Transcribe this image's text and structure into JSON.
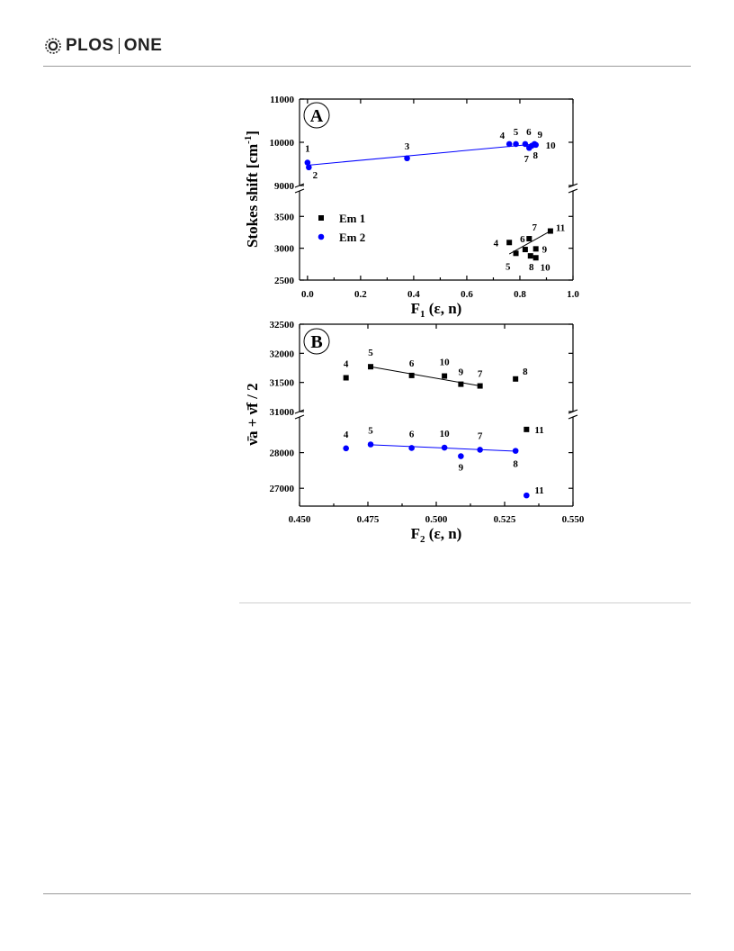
{
  "header": {
    "logo_left": "PLOS",
    "logo_right": "ONE",
    "logo_icon": "plos-logo-icon"
  },
  "chart_data": [
    {
      "type": "scatter",
      "panel_label": "A",
      "xlabel": "F",
      "xlabel_sub": "1",
      "xlabel_rest": " (ε, n)",
      "ylabel": "Stokes shift [cm",
      "ylabel_sup": "-1",
      "ylabel_end": "]",
      "xlim": [
        -0.03,
        1.0
      ],
      "x_ticks": [
        "0.0",
        "0.2",
        "0.4",
        "0.6",
        "0.8",
        "1.0"
      ],
      "y_broken": true,
      "y_upper_range": [
        9000,
        11000
      ],
      "y_upper_ticks": [
        "9000",
        "10000",
        "11000"
      ],
      "y_lower_range": [
        2500,
        3900
      ],
      "y_lower_ticks": [
        "2500",
        "3000",
        "3500"
      ],
      "legend": [
        {
          "label": "Em 1",
          "marker": "square",
          "color": "#000000"
        },
        {
          "label": "Em 2",
          "marker": "circle",
          "color": "#0000ff"
        }
      ],
      "legend_position": "middle-left",
      "series": [
        {
          "name": "Em 1",
          "color": "#000000",
          "marker": "square",
          "points": [
            {
              "label": "4",
              "x": 0.76,
              "y": 3090
            },
            {
              "label": "5",
              "x": 0.785,
              "y": 2920
            },
            {
              "label": "6",
              "x": 0.82,
              "y": 2980
            },
            {
              "label": "7",
              "x": 0.835,
              "y": 3150
            },
            {
              "label": "8",
              "x": 0.84,
              "y": 2880
            },
            {
              "label": "9",
              "x": 0.86,
              "y": 2990
            },
            {
              "label": "10",
              "x": 0.86,
              "y": 2850
            },
            {
              "label": "11",
              "x": 0.915,
              "y": 3270
            }
          ],
          "fit_line": [
            [
              0.76,
              2910
            ],
            [
              0.915,
              3270
            ]
          ]
        },
        {
          "name": "Em 2",
          "color": "#0000ff",
          "marker": "circle",
          "points": [
            {
              "label": "1",
              "x": 0.0,
              "y": 9530
            },
            {
              "label": "2",
              "x": 0.005,
              "y": 9420
            },
            {
              "label": "3",
              "x": 0.375,
              "y": 9630
            },
            {
              "label": "4",
              "x": 0.76,
              "y": 9960
            },
            {
              "label": "5",
              "x": 0.785,
              "y": 9960
            },
            {
              "label": "6",
              "x": 0.82,
              "y": 9960
            },
            {
              "label": "7",
              "x": 0.835,
              "y": 9870
            },
            {
              "label": "8",
              "x": 0.845,
              "y": 9920
            },
            {
              "label": "9",
              "x": 0.855,
              "y": 9960
            },
            {
              "label": "10",
              "x": 0.86,
              "y": 9940
            }
          ],
          "fit_line": [
            [
              0.0,
              9470
            ],
            [
              0.86,
              9960
            ]
          ]
        }
      ]
    },
    {
      "type": "scatter",
      "panel_label": "B",
      "xlabel": "F",
      "xlabel_sub": "2",
      "xlabel_rest": " (ε, n)",
      "ylabel": "ν̄a + ν̄f / 2",
      "xlim": [
        0.45,
        0.55
      ],
      "x_ticks": [
        "0.450",
        "0.475",
        "0.500",
        "0.525",
        "0.550"
      ],
      "y_broken": true,
      "y_upper_range": [
        31000,
        32500
      ],
      "y_upper_ticks": [
        "31000",
        "31500",
        "32000",
        "32500"
      ],
      "y_lower_range": [
        26500,
        29000
      ],
      "y_lower_ticks": [
        "27000",
        "28000"
      ],
      "series": [
        {
          "name": "Em 1",
          "color": "#000000",
          "marker": "square",
          "points": [
            {
              "label": "4",
              "x": 0.467,
              "y": 31580
            },
            {
              "label": "5",
              "x": 0.476,
              "y": 31770
            },
            {
              "label": "6",
              "x": 0.491,
              "y": 31620
            },
            {
              "label": "10",
              "x": 0.503,
              "y": 31610
            },
            {
              "label": "9",
              "x": 0.509,
              "y": 31470
            },
            {
              "label": "7",
              "x": 0.516,
              "y": 31440
            },
            {
              "label": "8",
              "x": 0.529,
              "y": 31560
            },
            {
              "label": "11",
              "x": 0.533,
              "y": 28650
            }
          ],
          "fit_line": [
            [
              0.476,
              31770
            ],
            [
              0.516,
              31440
            ]
          ]
        },
        {
          "name": "Em 2",
          "color": "#0000ff",
          "marker": "circle",
          "points": [
            {
              "label": "4",
              "x": 0.467,
              "y": 28120
            },
            {
              "label": "5",
              "x": 0.476,
              "y": 28230
            },
            {
              "label": "6",
              "x": 0.491,
              "y": 28130
            },
            {
              "label": "10",
              "x": 0.503,
              "y": 28140
            },
            {
              "label": "9",
              "x": 0.509,
              "y": 27900
            },
            {
              "label": "7",
              "x": 0.516,
              "y": 28080
            },
            {
              "label": "8",
              "x": 0.529,
              "y": 28050
            },
            {
              "label": "11",
              "x": 0.533,
              "y": 26800
            }
          ],
          "fit_line": [
            [
              0.476,
              28220
            ],
            [
              0.529,
              28040
            ]
          ]
        }
      ]
    }
  ]
}
